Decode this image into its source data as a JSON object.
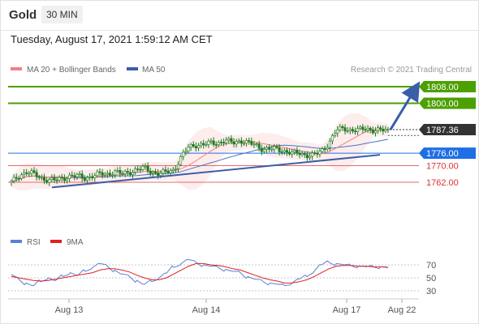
{
  "header": {
    "title": "Gold",
    "timeframe": "30 MIN"
  },
  "datetime": "Tuesday, August 17, 2021 1:59:12 AM CET",
  "legend": {
    "ma20_label": "MA 20 + Bollinger Bands",
    "ma50_label": "MA 50",
    "copyright": "Research © 2021 Trading Central"
  },
  "rsi_legend": {
    "rsi_label": "RSI",
    "ma_label": "9MA"
  },
  "colors": {
    "green": "#4ca000",
    "blue_level": "#1e6fe6",
    "red_level": "#e26b6b",
    "dark": "#333333",
    "trend": "#3b5ea8",
    "candle": "#1f7a1f",
    "ma20": "#f08080",
    "ma50": "#4a74c9",
    "rsi": "#5b7fd6",
    "rsi_ma": "#e02020"
  },
  "chart_data": {
    "type": "candlestick",
    "price_panel": {
      "price_range": [
        1755,
        1812
      ],
      "levels": [
        {
          "value": 1808.0,
          "label": "1808.00",
          "kind": "target"
        },
        {
          "value": 1800.0,
          "label": "1800.00",
          "kind": "target"
        },
        {
          "value": 1787.36,
          "label": "1787.36",
          "kind": "last"
        },
        {
          "value": 1776.0,
          "label": "1776.00",
          "kind": "pivot"
        },
        {
          "value": 1770.0,
          "label": "1770.00",
          "kind": "support"
        },
        {
          "value": 1762.0,
          "label": "1762.00",
          "kind": "support"
        }
      ],
      "close_path": [
        1762,
        1765,
        1767,
        1766,
        1764,
        1763,
        1763,
        1764,
        1765,
        1765,
        1764,
        1765,
        1766,
        1766,
        1767,
        1766,
        1767,
        1768,
        1769,
        1767,
        1766,
        1767,
        1768,
        1774,
        1779,
        1780,
        1780,
        1781,
        1781,
        1782,
        1781,
        1782,
        1781,
        1780,
        1778,
        1778,
        1778,
        1777,
        1776,
        1776,
        1775,
        1775,
        1777,
        1781,
        1787,
        1788,
        1787,
        1787,
        1788,
        1787,
        1787,
        1787
      ]
    },
    "x_ticks": [
      "Aug 13",
      "Aug 14",
      "Aug 17",
      "Aug 22"
    ],
    "rsi_panel": {
      "levels": [
        70,
        50,
        30
      ],
      "rsi_path": [
        55,
        48,
        42,
        38,
        44,
        50,
        46,
        52,
        58,
        54,
        60,
        66,
        72,
        68,
        62,
        56,
        52,
        46,
        40,
        44,
        50,
        57,
        66,
        72,
        78,
        74,
        70,
        68,
        66,
        63,
        60,
        58,
        52,
        48,
        45,
        42,
        40,
        38,
        42,
        48,
        52,
        60,
        70,
        74,
        72,
        70,
        69,
        68,
        67,
        67,
        67,
        66
      ],
      "ma_path": [
        52,
        50,
        48,
        46,
        45,
        46,
        48,
        50,
        52,
        54,
        56,
        58,
        62,
        64,
        64,
        62,
        59,
        54,
        50,
        47,
        47,
        50,
        56,
        62,
        68,
        72,
        72,
        70,
        69,
        67,
        64,
        62,
        58,
        54,
        50,
        47,
        45,
        42,
        42,
        44,
        47,
        52,
        58,
        64,
        68,
        69,
        69,
        68,
        68,
        67,
        67,
        66
      ]
    }
  }
}
